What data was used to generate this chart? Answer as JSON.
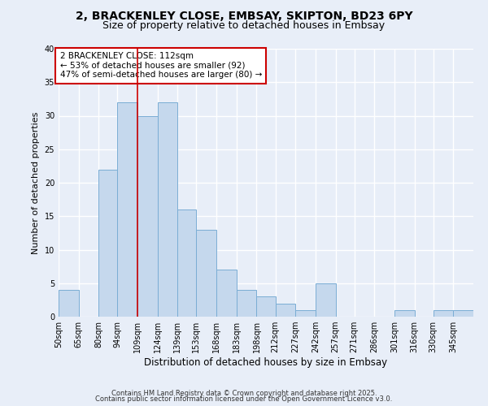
{
  "title": "2, BRACKENLEY CLOSE, EMBSAY, SKIPTON, BD23 6PY",
  "subtitle": "Size of property relative to detached houses in Embsay",
  "xlabel": "Distribution of detached houses by size in Embsay",
  "ylabel": "Number of detached properties",
  "bin_labels": [
    "50sqm",
    "65sqm",
    "80sqm",
    "94sqm",
    "109sqm",
    "124sqm",
    "139sqm",
    "153sqm",
    "168sqm",
    "183sqm",
    "198sqm",
    "212sqm",
    "227sqm",
    "242sqm",
    "257sqm",
    "271sqm",
    "286sqm",
    "301sqm",
    "316sqm",
    "330sqm",
    "345sqm"
  ],
  "bin_edges": [
    50,
    65,
    80,
    94,
    109,
    124,
    139,
    153,
    168,
    183,
    198,
    212,
    227,
    242,
    257,
    271,
    286,
    301,
    316,
    330,
    345,
    360
  ],
  "counts": [
    4,
    0,
    22,
    32,
    30,
    32,
    16,
    13,
    7,
    4,
    3,
    2,
    1,
    5,
    0,
    0,
    0,
    1,
    0,
    1,
    1
  ],
  "bar_color": "#c5d8ed",
  "bar_edge_color": "#7aadd4",
  "red_line_x": 109,
  "ylim": [
    0,
    40
  ],
  "yticks": [
    0,
    5,
    10,
    15,
    20,
    25,
    30,
    35,
    40
  ],
  "annotation_text": "2 BRACKENLEY CLOSE: 112sqm\n← 53% of detached houses are smaller (92)\n47% of semi-detached houses are larger (80) →",
  "annotation_box_color": "#ffffff",
  "annotation_box_edge": "#cc0000",
  "footer1": "Contains HM Land Registry data © Crown copyright and database right 2025.",
  "footer2": "Contains public sector information licensed under the Open Government Licence v3.0.",
  "bg_color": "#e8eef8",
  "grid_color": "#ffffff",
  "title_fontsize": 10,
  "subtitle_fontsize": 9,
  "ylabel_fontsize": 8,
  "xlabel_fontsize": 8.5,
  "tick_fontsize": 7,
  "footer_fontsize": 6,
  "annot_fontsize": 7.5
}
